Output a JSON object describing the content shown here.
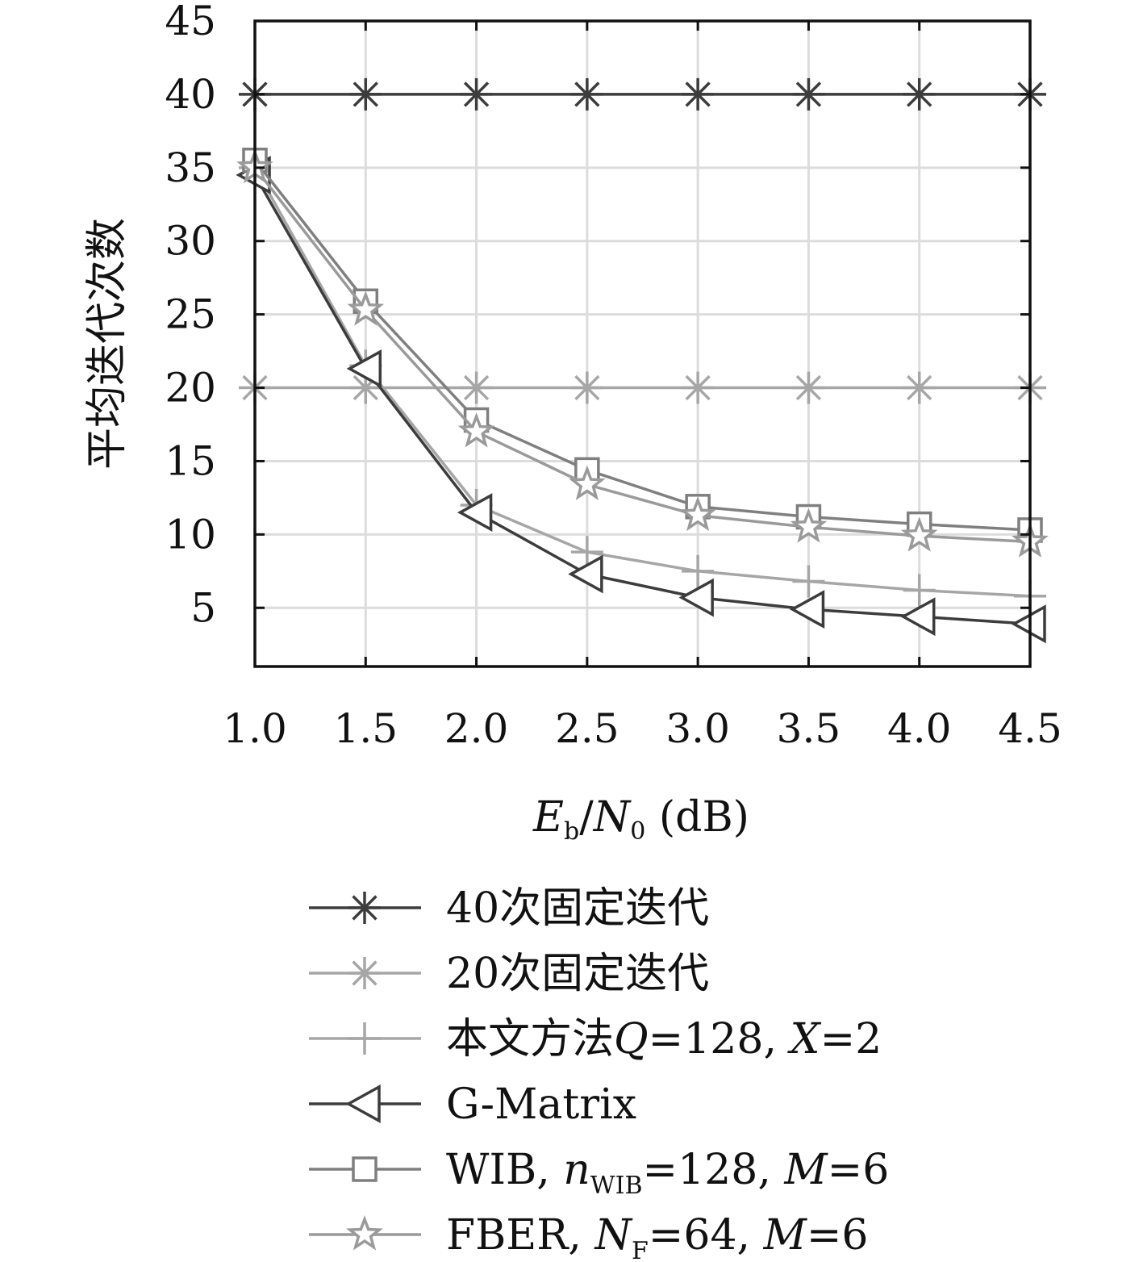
{
  "chart_data": {
    "type": "line",
    "xlabel": {
      "main": "E",
      "sub": "b",
      "slash": "/",
      "main2": "N",
      "sub2": "0",
      "unit": " (dB)"
    },
    "ylabel": "平均迭代次数",
    "xlim": [
      1.0,
      4.5
    ],
    "ylim": [
      1,
      45
    ],
    "x_ticks": [
      "1.0",
      "1.5",
      "2.0",
      "2.5",
      "3.0",
      "3.5",
      "4.0",
      "4.5"
    ],
    "y_ticks": [
      "5",
      "10",
      "15",
      "20",
      "25",
      "30",
      "35",
      "40",
      "45"
    ],
    "grid": true,
    "legend_position": "below",
    "x": [
      1.0,
      1.5,
      2.0,
      2.5,
      3.0,
      3.5,
      4.0,
      4.5
    ],
    "series": [
      {
        "name": "40次固定迭代",
        "name_parts": [
          {
            "t": "40次固定迭代",
            "style": "normal"
          }
        ],
        "marker": "asterisk",
        "color": "#3c3c3c",
        "values": [
          40,
          40,
          40,
          40,
          40,
          40,
          40,
          40
        ]
      },
      {
        "name": "20次固定迭代",
        "name_parts": [
          {
            "t": "20次固定迭代",
            "style": "normal"
          }
        ],
        "marker": "asterisk",
        "color": "#a6a6a6",
        "values": [
          20,
          20,
          20,
          20,
          20,
          20,
          20,
          20
        ]
      },
      {
        "name": "本文方法Q=128, X=2",
        "name_parts": [
          {
            "t": "本文方法",
            "style": "normal"
          },
          {
            "t": "Q",
            "style": "italic"
          },
          {
            "t": "=128, ",
            "style": "normal"
          },
          {
            "t": "X",
            "style": "italic"
          },
          {
            "t": "=2",
            "style": "normal"
          }
        ],
        "marker": "plus",
        "color": "#a6a6a6",
        "values": [
          35,
          21.5,
          12,
          8.8,
          7.5,
          6.8,
          6.2,
          5.8
        ]
      },
      {
        "name": "G-Matrix",
        "name_parts": [
          {
            "t": "G-Matrix",
            "style": "normal"
          }
        ],
        "marker": "triangle-left",
        "color": "#3c3c3c",
        "values": [
          34.5,
          21.3,
          11.5,
          7.3,
          5.7,
          4.9,
          4.4,
          3.9
        ]
      },
      {
        "name": "WIB, nWIB=128, M=6",
        "name_parts": [
          {
            "t": "WIB, ",
            "style": "normal"
          },
          {
            "t": "n",
            "style": "italic"
          },
          {
            "t": "WIB",
            "style": "sub"
          },
          {
            "t": "=128, ",
            "style": "normal"
          },
          {
            "t": "M",
            "style": "italic"
          },
          {
            "t": "=6",
            "style": "normal"
          }
        ],
        "marker": "square",
        "color": "#7f7f7f",
        "values": [
          35.5,
          25.9,
          17.8,
          14.4,
          11.9,
          11.2,
          10.7,
          10.3
        ]
      },
      {
        "name": "FBER, NF=64, M=6",
        "name_parts": [
          {
            "t": "FBER, ",
            "style": "normal"
          },
          {
            "t": "N",
            "style": "italic"
          },
          {
            "t": "F",
            "style": "sub"
          },
          {
            "t": "=64, ",
            "style": "normal"
          },
          {
            "t": "M",
            "style": "italic"
          },
          {
            "t": "=6",
            "style": "normal"
          }
        ],
        "marker": "star",
        "color": "#9a9a9a",
        "values": [
          35,
          25.3,
          17,
          13.4,
          11.3,
          10.5,
          9.9,
          9.5
        ]
      }
    ]
  }
}
